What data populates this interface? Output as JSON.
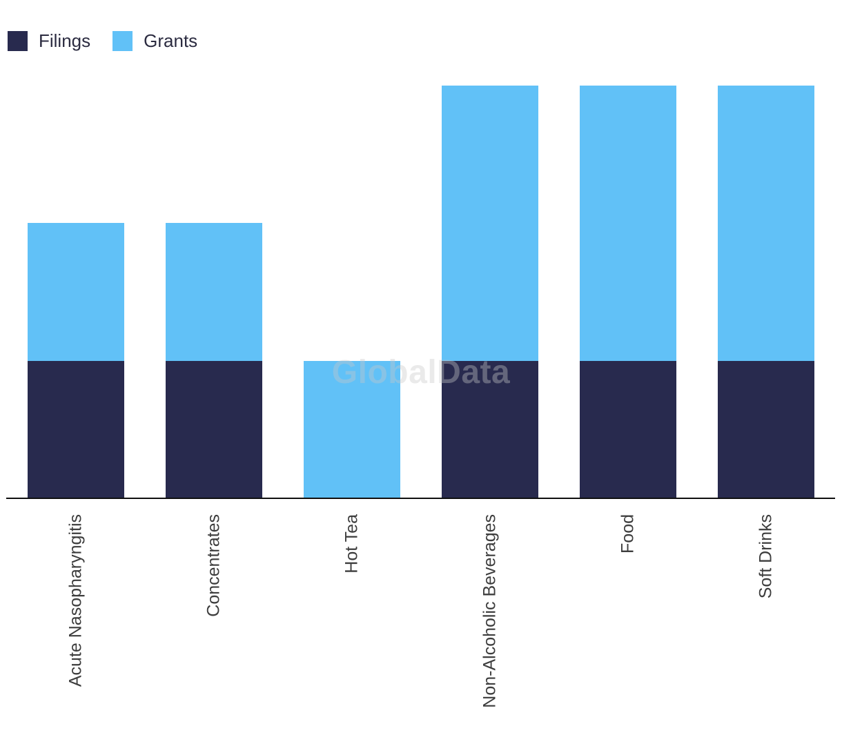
{
  "watermark": "GlobalData",
  "chart_data": {
    "type": "bar",
    "stacked": true,
    "title": "",
    "xlabel": "",
    "ylabel": "",
    "categories": [
      "Acute Nasopharyngitis",
      "Concentrates",
      "Hot Tea",
      "Non-Alcoholic Beverages",
      "Food",
      "Soft Drinks"
    ],
    "series": [
      {
        "name": "Filings",
        "color": "#282a4e",
        "values": [
          1,
          1,
          0,
          1,
          1,
          1
        ]
      },
      {
        "name": "Grants",
        "color": "#61c1f7",
        "values": [
          1,
          1,
          1,
          2,
          2,
          2
        ]
      }
    ],
    "ylim": [
      0,
      3
    ],
    "grid": false,
    "y_axis_visible": false,
    "legend_position": "top-left",
    "watermark": "GlobalData",
    "label_rotation_deg": -90
  }
}
